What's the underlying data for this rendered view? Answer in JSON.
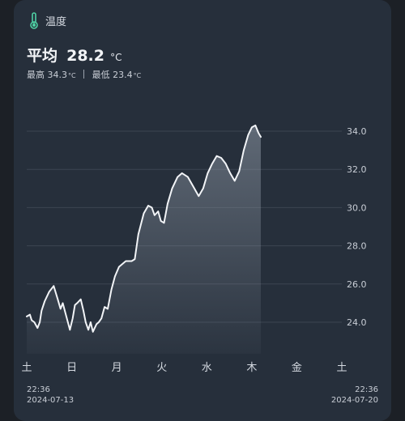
{
  "header": {
    "icon": "thermometer-icon",
    "label": "温度",
    "accent": "#4fd1a5"
  },
  "summary": {
    "avg_label": "平均",
    "avg_value": "28.2",
    "unit": "°C",
    "max_label": "最高",
    "max_value": "34.3",
    "min_label": "最低",
    "min_value": "23.4"
  },
  "footer": {
    "start_time": "22:36",
    "start_date": "2024-07-13",
    "end_time": "22:36",
    "end_date": "2024-07-20"
  },
  "chart_data": {
    "type": "area",
    "title": "",
    "xlabel": "",
    "ylabel": "",
    "ylim": [
      23,
      35
    ],
    "xlim": [
      0,
      7
    ],
    "grid": true,
    "categories": [
      "土",
      "日",
      "月",
      "火",
      "水",
      "木",
      "金",
      "土"
    ],
    "yticks": [
      "24.0",
      "26.0",
      "28.0",
      "30.0",
      "32.0",
      "34.0"
    ],
    "series": [
      {
        "values": [
          [
            0.0,
            24.3
          ],
          [
            0.07,
            24.4
          ],
          [
            0.11,
            24.1
          ],
          [
            0.17,
            24.0
          ],
          [
            0.24,
            23.7
          ],
          [
            0.29,
            24.0
          ],
          [
            0.33,
            24.6
          ],
          [
            0.4,
            25.1
          ],
          [
            0.5,
            25.6
          ],
          [
            0.6,
            25.9
          ],
          [
            0.69,
            25.2
          ],
          [
            0.75,
            24.7
          ],
          [
            0.8,
            25.0
          ],
          [
            0.88,
            24.3
          ],
          [
            0.96,
            23.6
          ],
          [
            1.02,
            24.2
          ],
          [
            1.07,
            24.9
          ],
          [
            1.12,
            25.0
          ],
          [
            1.2,
            25.2
          ],
          [
            1.26,
            24.6
          ],
          [
            1.31,
            24.0
          ],
          [
            1.37,
            23.6
          ],
          [
            1.42,
            24.0
          ],
          [
            1.47,
            23.5
          ],
          [
            1.55,
            23.9
          ],
          [
            1.6,
            24.0
          ],
          [
            1.66,
            24.2
          ],
          [
            1.73,
            24.8
          ],
          [
            1.8,
            24.7
          ],
          [
            1.88,
            25.7
          ],
          [
            1.96,
            26.4
          ],
          [
            2.05,
            26.9
          ],
          [
            2.2,
            27.2
          ],
          [
            2.33,
            27.2
          ],
          [
            2.4,
            27.3
          ],
          [
            2.48,
            28.6
          ],
          [
            2.6,
            29.7
          ],
          [
            2.7,
            30.1
          ],
          [
            2.78,
            30.0
          ],
          [
            2.84,
            29.6
          ],
          [
            2.92,
            29.8
          ],
          [
            2.98,
            29.3
          ],
          [
            3.05,
            29.2
          ],
          [
            3.13,
            30.2
          ],
          [
            3.23,
            31.0
          ],
          [
            3.35,
            31.6
          ],
          [
            3.45,
            31.8
          ],
          [
            3.58,
            31.6
          ],
          [
            3.7,
            31.1
          ],
          [
            3.82,
            30.6
          ],
          [
            3.92,
            31.0
          ],
          [
            4.02,
            31.8
          ],
          [
            4.12,
            32.3
          ],
          [
            4.22,
            32.7
          ],
          [
            4.32,
            32.6
          ],
          [
            4.42,
            32.3
          ],
          [
            4.52,
            31.8
          ],
          [
            4.62,
            31.4
          ],
          [
            4.72,
            31.9
          ],
          [
            4.82,
            33.0
          ],
          [
            4.92,
            33.8
          ],
          [
            5.0,
            34.2
          ],
          [
            5.08,
            34.3
          ],
          [
            5.15,
            33.9
          ],
          [
            5.2,
            33.7
          ]
        ]
      }
    ]
  }
}
